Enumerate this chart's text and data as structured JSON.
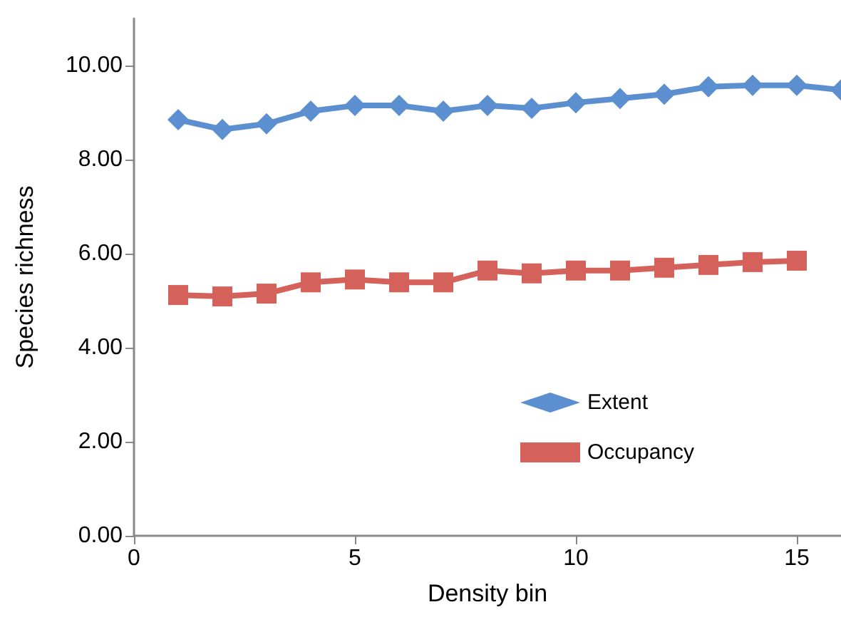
{
  "chart_data": {
    "type": "line",
    "xlabel": "Density bin",
    "ylabel": "Species richness",
    "xlim": [
      0,
      16
    ],
    "xticks": [
      0,
      5,
      10,
      15
    ],
    "ylim": [
      0,
      11
    ],
    "yticks": [
      {
        "value": 0,
        "label": "0.00"
      },
      {
        "value": 2,
        "label": "2.00"
      },
      {
        "value": 4,
        "label": "4.00"
      },
      {
        "value": 6,
        "label": "6.00"
      },
      {
        "value": 8,
        "label": "8.00"
      },
      {
        "value": 10,
        "label": "10.00"
      }
    ],
    "grid": false,
    "legend": "bottom right",
    "line_style": "solid",
    "series": [
      {
        "name": "Extent",
        "color": "#5b8fd0",
        "marker": "diamond",
        "x": [
          1,
          2,
          3,
          4,
          5,
          6,
          7,
          8,
          9,
          10,
          11,
          12,
          13,
          14,
          15,
          16
        ],
        "values": [
          8.85,
          8.64,
          8.76,
          9.03,
          9.15,
          9.15,
          9.03,
          9.15,
          9.09,
          9.21,
          9.3,
          9.39,
          9.55,
          9.58,
          9.58,
          9.48
        ]
      },
      {
        "name": "Occupancy",
        "color": "#d5625a",
        "marker": "square",
        "x": [
          1,
          2,
          3,
          4,
          5,
          6,
          7,
          8,
          9,
          10,
          11,
          12,
          13,
          14,
          15
        ],
        "values": [
          5.12,
          5.09,
          5.15,
          5.39,
          5.45,
          5.39,
          5.39,
          5.64,
          5.58,
          5.64,
          5.64,
          5.7,
          5.76,
          5.82,
          5.85
        ]
      }
    ]
  }
}
